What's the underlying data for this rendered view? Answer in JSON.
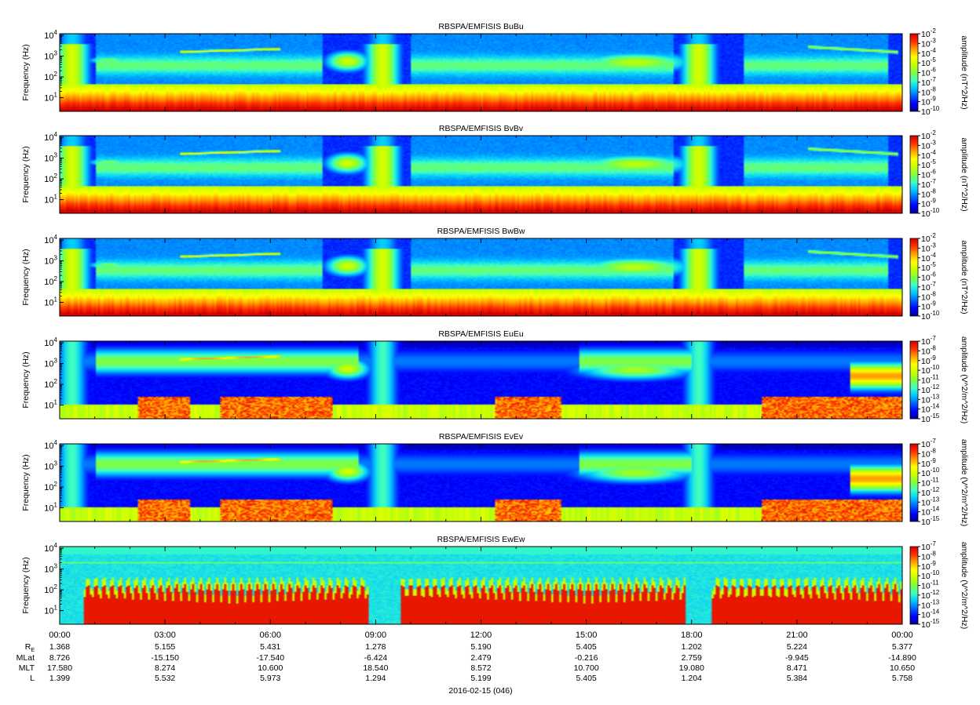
{
  "chart_data": {
    "type": "heatmap",
    "date_label": "2016-02-15 (046)",
    "x_ticks": [
      "00:00",
      "03:00",
      "06:00",
      "09:00",
      "12:00",
      "15:00",
      "18:00",
      "21:00",
      "00:00"
    ],
    "x_range_hours": [
      0,
      24
    ],
    "ylabel": "Frequency (Hz)",
    "y_scale": "log",
    "y_range_hz": [
      2.2,
      12000
    ],
    "y_ticks": [
      {
        "base": "10",
        "exp": "4",
        "value": 10000
      },
      {
        "base": "10",
        "exp": "3",
        "value": 1000
      },
      {
        "base": "10",
        "exp": "2",
        "value": 100
      },
      {
        "base": "10",
        "exp": "1",
        "value": 10
      }
    ],
    "colormap": [
      "#000090",
      "#0000ff",
      "#0060ff",
      "#00c8ff",
      "#40ffc0",
      "#80ff40",
      "#c8ff00",
      "#ffff00",
      "#ffa000",
      "#ff3000",
      "#d00000"
    ],
    "panels": [
      {
        "title": "RBSPA/EMFISIS  BuBu",
        "colorbar_label": "amplitude (nT^2/Hz)",
        "colorbar_ticks": [
          {
            "base": "10",
            "exp": "-2"
          },
          {
            "base": "10",
            "exp": "-3"
          },
          {
            "base": "10",
            "exp": "-4"
          },
          {
            "base": "10",
            "exp": "-5"
          },
          {
            "base": "10",
            "exp": "-6"
          },
          {
            "base": "10",
            "exp": "-7"
          },
          {
            "base": "10",
            "exp": "-8"
          },
          {
            "base": "10",
            "exp": "-9"
          },
          {
            "base": "10",
            "exp": "-10"
          }
        ],
        "pattern": "magnetic"
      },
      {
        "title": "RBSPA/EMFISIS  BvBv",
        "colorbar_label": "amplitude (nT^2/Hz)",
        "colorbar_ticks": [
          {
            "base": "10",
            "exp": "-2"
          },
          {
            "base": "10",
            "exp": "-3"
          },
          {
            "base": "10",
            "exp": "-4"
          },
          {
            "base": "10",
            "exp": "-5"
          },
          {
            "base": "10",
            "exp": "-6"
          },
          {
            "base": "10",
            "exp": "-7"
          },
          {
            "base": "10",
            "exp": "-8"
          },
          {
            "base": "10",
            "exp": "-9"
          },
          {
            "base": "10",
            "exp": "-10"
          }
        ],
        "pattern": "magnetic"
      },
      {
        "title": "RBSPA/EMFISIS  BwBw",
        "colorbar_label": "amplitude (nT^2/Hz)",
        "colorbar_ticks": [
          {
            "base": "10",
            "exp": "-2"
          },
          {
            "base": "10",
            "exp": "-3"
          },
          {
            "base": "10",
            "exp": "-4"
          },
          {
            "base": "10",
            "exp": "-5"
          },
          {
            "base": "10",
            "exp": "-6"
          },
          {
            "base": "10",
            "exp": "-7"
          },
          {
            "base": "10",
            "exp": "-8"
          },
          {
            "base": "10",
            "exp": "-9"
          },
          {
            "base": "10",
            "exp": "-10"
          }
        ],
        "pattern": "magnetic"
      },
      {
        "title": "RBSPA/EMFISIS  EuEu",
        "colorbar_label": "amplitude (V^2/m^2/Hz)",
        "colorbar_ticks": [
          {
            "base": "10",
            "exp": "-7"
          },
          {
            "base": "10",
            "exp": "-8"
          },
          {
            "base": "10",
            "exp": "-9"
          },
          {
            "base": "10",
            "exp": "-10"
          },
          {
            "base": "10",
            "exp": "-11"
          },
          {
            "base": "10",
            "exp": "-12"
          },
          {
            "base": "10",
            "exp": "-13"
          },
          {
            "base": "10",
            "exp": "-14"
          },
          {
            "base": "10",
            "exp": "-15"
          }
        ],
        "pattern": "electric"
      },
      {
        "title": "RBSPA/EMFISIS  EvEv",
        "colorbar_label": "amplitude (V^2/m^2/Hz)",
        "colorbar_ticks": [
          {
            "base": "10",
            "exp": "-7"
          },
          {
            "base": "10",
            "exp": "-8"
          },
          {
            "base": "10",
            "exp": "-9"
          },
          {
            "base": "10",
            "exp": "-10"
          },
          {
            "base": "10",
            "exp": "-11"
          },
          {
            "base": "10",
            "exp": "-12"
          },
          {
            "base": "10",
            "exp": "-13"
          },
          {
            "base": "10",
            "exp": "-14"
          },
          {
            "base": "10",
            "exp": "-15"
          }
        ],
        "pattern": "electric"
      },
      {
        "title": "RBSPA/EMFISIS  EwEw",
        "colorbar_label": "amplitude (V^2/m^2/Hz)",
        "colorbar_ticks": [
          {
            "base": "10",
            "exp": "-7"
          },
          {
            "base": "10",
            "exp": "-8"
          },
          {
            "base": "10",
            "exp": "-9"
          },
          {
            "base": "10",
            "exp": "-10"
          },
          {
            "base": "10",
            "exp": "-11"
          },
          {
            "base": "10",
            "exp": "-12"
          },
          {
            "base": "10",
            "exp": "-13"
          },
          {
            "base": "10",
            "exp": "-14"
          },
          {
            "base": "10",
            "exp": "-15"
          }
        ],
        "pattern": "spin"
      }
    ],
    "ephemeris": {
      "rows": [
        {
          "label": "R",
          "sub": "E",
          "values": [
            "1.368",
            "5.155",
            "5.431",
            "1.278",
            "5.190",
            "5.405",
            "1.202",
            "5.224",
            "5.377"
          ]
        },
        {
          "label": "MLat",
          "values": [
            "8.726",
            "-15.150",
            "-17.540",
            "-6.424",
            "2.479",
            "-0.216",
            "2.759",
            "-9.945",
            "-14.890"
          ]
        },
        {
          "label": "MLT",
          "values": [
            "17.580",
            "8.274",
            "10.600",
            "18.540",
            "8.572",
            "10.700",
            "19.080",
            "8.471",
            "10.650"
          ]
        },
        {
          "label": "L",
          "values": [
            "1.399",
            "5.532",
            "5.973",
            "1.294",
            "5.199",
            "5.405",
            "1.204",
            "5.384",
            "5.758"
          ]
        }
      ]
    }
  }
}
